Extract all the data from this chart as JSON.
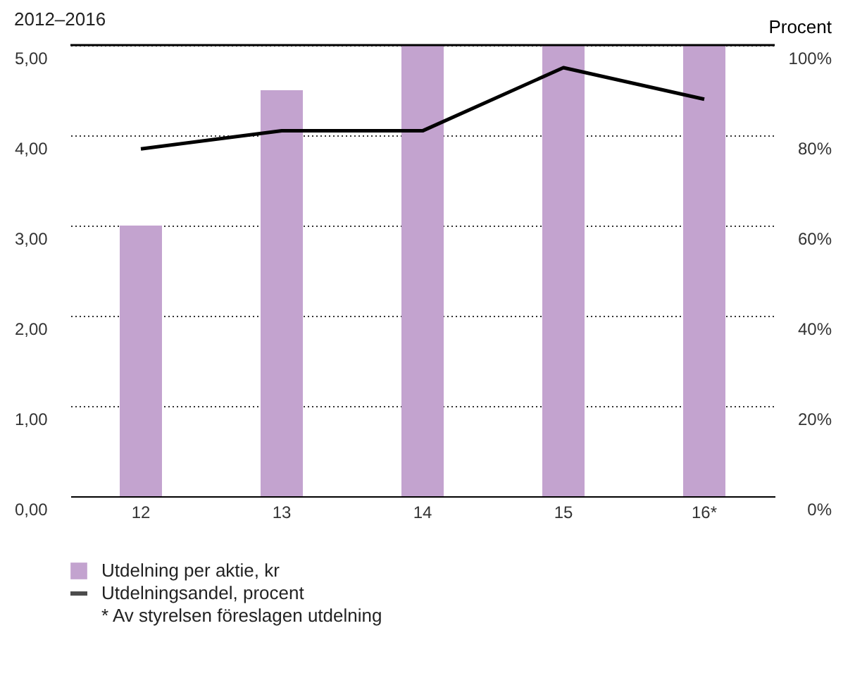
{
  "chart_data": {
    "type": "bar",
    "title": "2012–2016",
    "y2label": "Procent",
    "categories": [
      "12",
      "13",
      "14",
      "15",
      "16*"
    ],
    "series": [
      {
        "name": "Utdelning per aktie, kr",
        "color": "#c3a3cf",
        "values": [
          3.0,
          4.5,
          5.0,
          5.0,
          5.0
        ]
      },
      {
        "name": "Utdelningsandel, procent",
        "type": "line",
        "axis": "y2",
        "color": "#000000",
        "values": [
          77,
          81,
          81,
          95,
          88
        ]
      }
    ],
    "ylim": [
      0,
      5
    ],
    "yticks": [
      {
        "value": 0,
        "label": "0,00"
      },
      {
        "value": 1,
        "label": "1,00"
      },
      {
        "value": 2,
        "label": "2,00"
      },
      {
        "value": 3,
        "label": "3,00"
      },
      {
        "value": 4,
        "label": "4,00"
      },
      {
        "value": 5,
        "label": "5,00"
      }
    ],
    "y2lim": [
      0,
      100
    ],
    "y2ticks": [
      {
        "value": 0,
        "label": "0%"
      },
      {
        "value": 20,
        "label": "20%"
      },
      {
        "value": 40,
        "label": "40%"
      },
      {
        "value": 60,
        "label": "60%"
      },
      {
        "value": 80,
        "label": "80%"
      },
      {
        "value": 100,
        "label": "100%"
      }
    ],
    "grid": "y",
    "legend": "bottom",
    "line_style": "solid",
    "marker": "none",
    "annotations": [
      "* Av styrelsen föreslagen utdelning"
    ]
  }
}
